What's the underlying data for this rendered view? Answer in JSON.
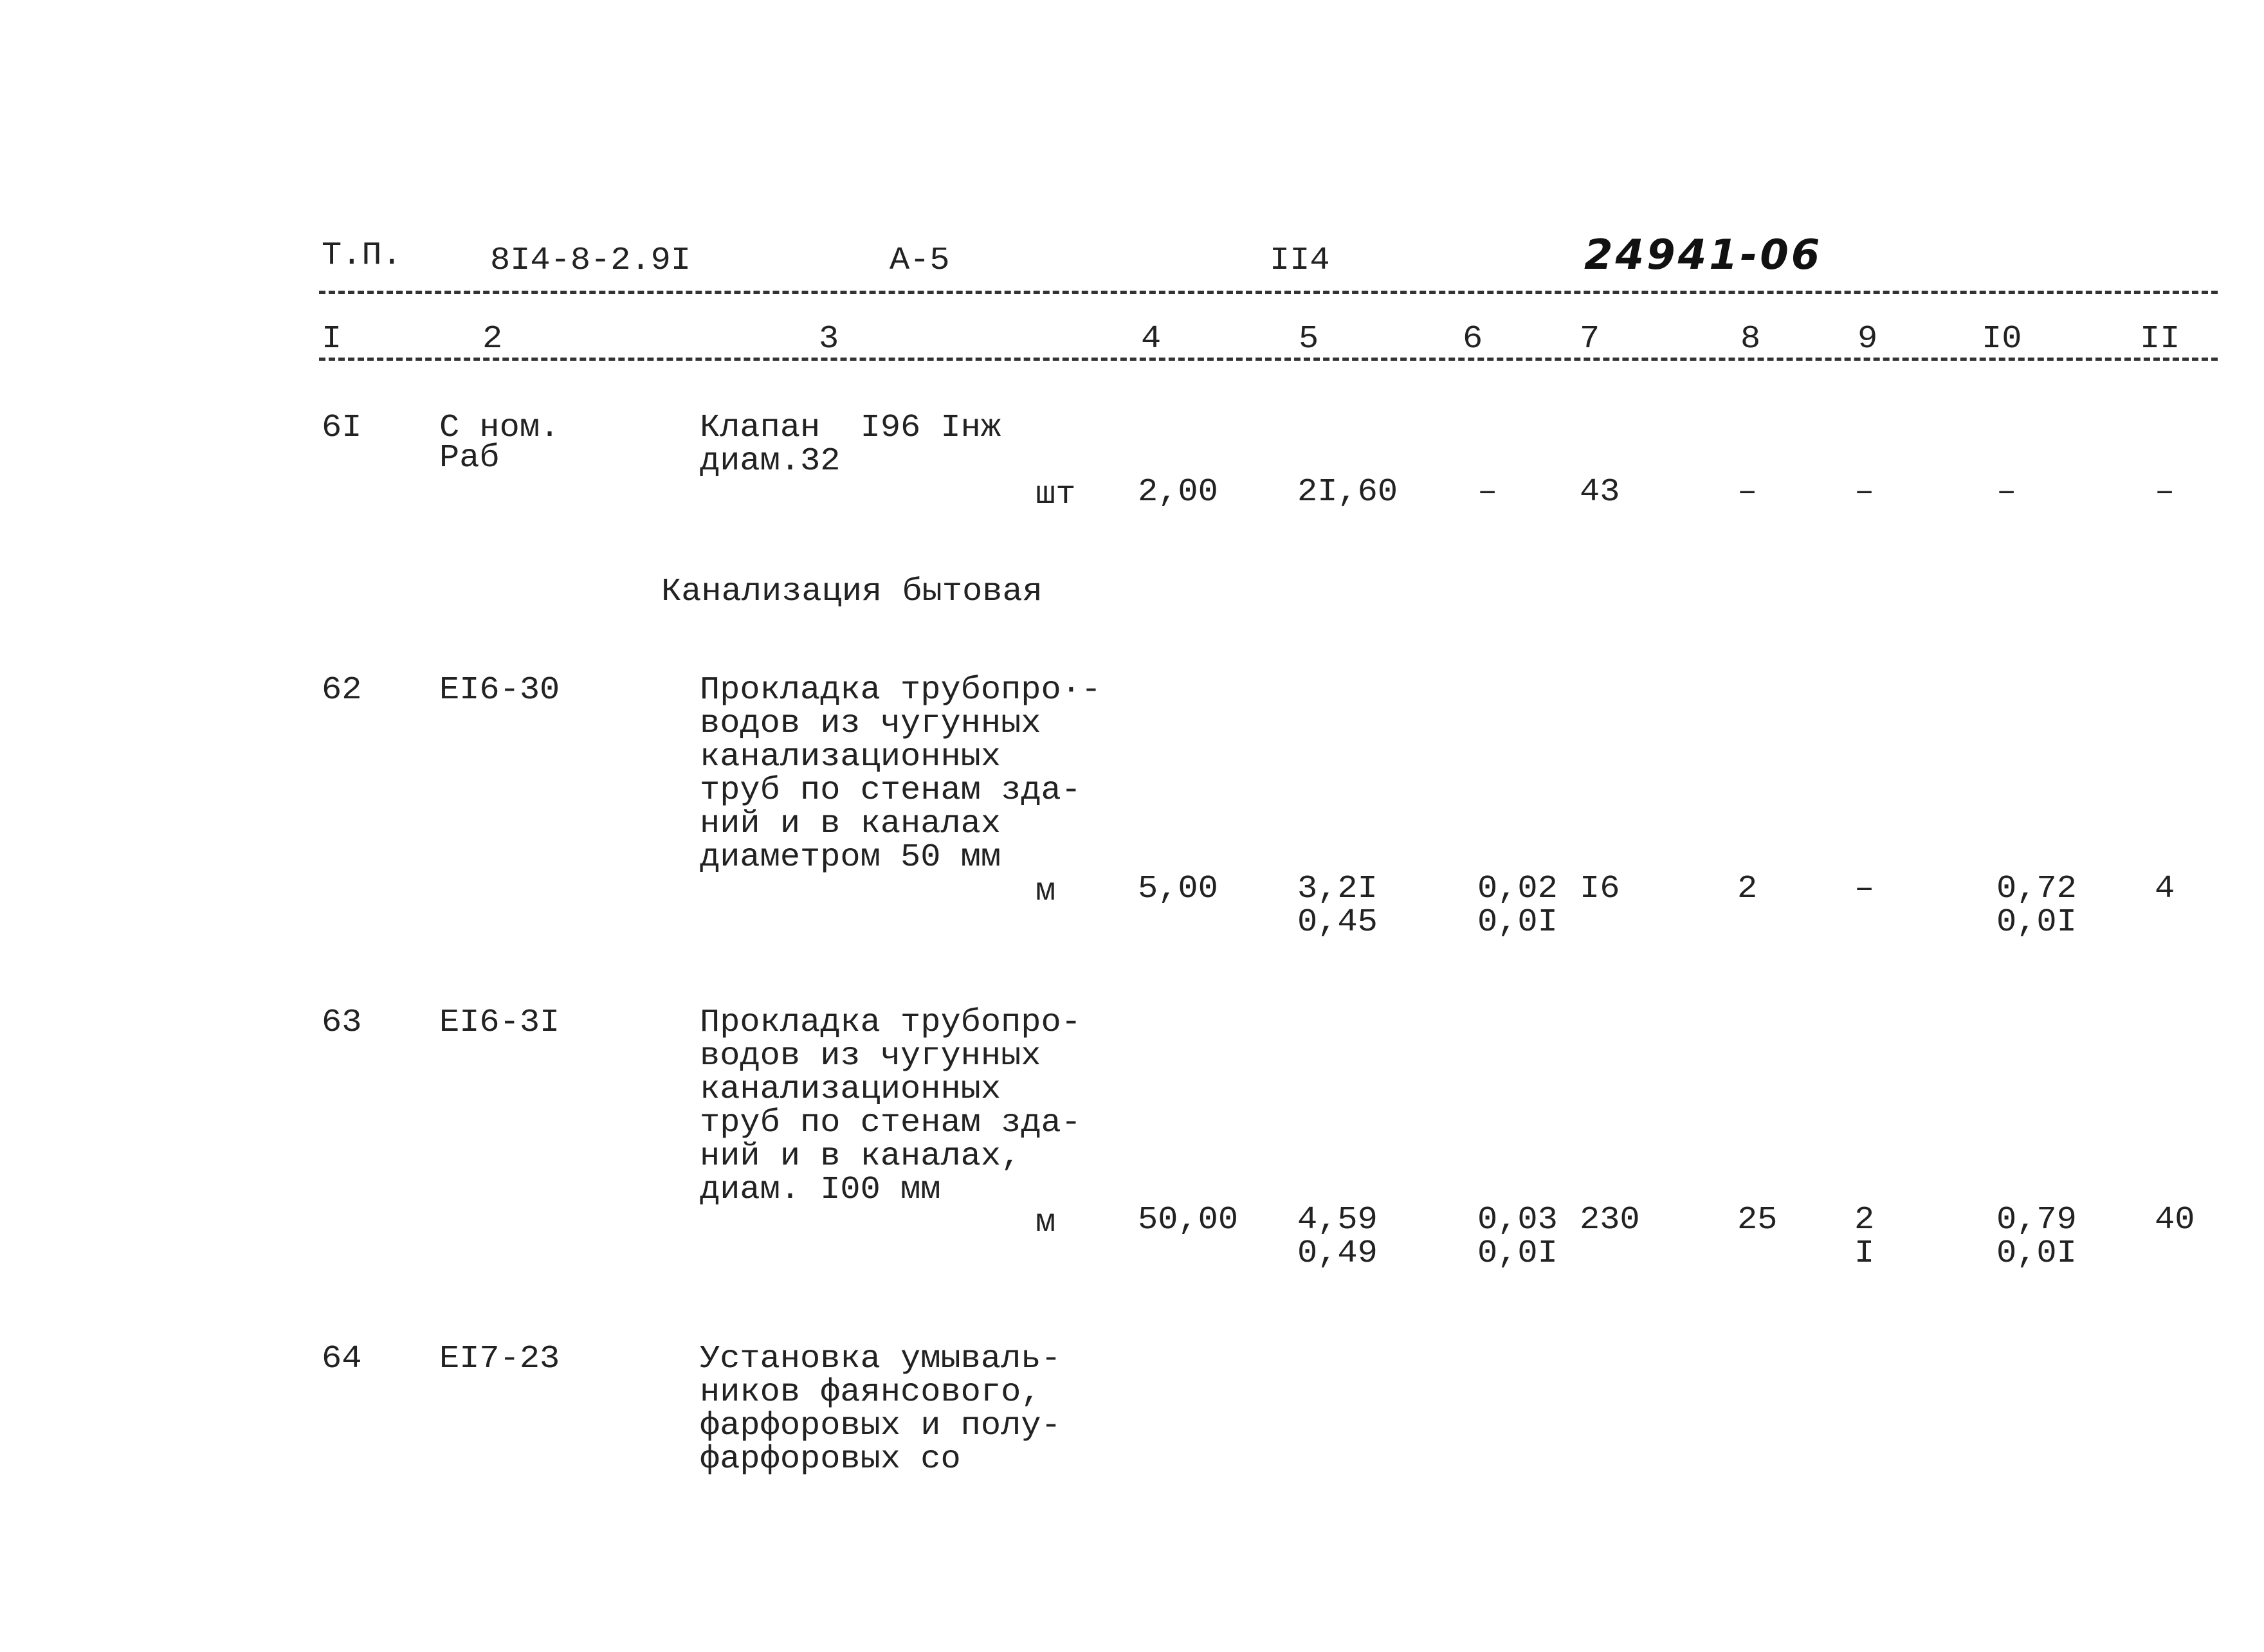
{
  "header": {
    "label": "Т.П.",
    "project_code": "8I4-8-2.9I",
    "album": "А-5",
    "page": "II4",
    "handwritten_number": "24941-06"
  },
  "column_numbers": [
    "I",
    "2",
    "3",
    "4",
    "5",
    "6",
    "7",
    "8",
    "9",
    "I0",
    "II"
  ],
  "rows": [
    {
      "num": "6I",
      "code": [
        "С ном.",
        "Раб"
      ],
      "description": [
        "Клапан  I96 Iнж",
        "диам.32"
      ],
      "unit": "шт",
      "values": [
        [
          "2,00"
        ],
        [
          "2I,60"
        ],
        [
          "–"
        ],
        [
          "43"
        ],
        [
          "–"
        ],
        [
          "–"
        ],
        [
          "–"
        ],
        [
          "–"
        ]
      ]
    },
    {
      "section": "Канализация бытовая"
    },
    {
      "num": "62",
      "code": [
        "EI6-30"
      ],
      "description": [
        "Прокладка трубопро·-",
        "водов из чугунных",
        "канализационных",
        "труб по стенам зда-",
        "ний и в каналах",
        "диаметром 50 мм"
      ],
      "unit": "м",
      "values": [
        [
          "5,00"
        ],
        [
          "3,2I",
          "0,45"
        ],
        [
          "0,02",
          "0,0I"
        ],
        [
          "I6"
        ],
        [
          "2"
        ],
        [
          "–"
        ],
        [
          "0,72",
          "0,0I"
        ],
        [
          "4"
        ]
      ]
    },
    {
      "num": "63",
      "code": [
        "EI6-3I"
      ],
      "description": [
        "Прокладка трубопро-",
        "водов из чугунных",
        "канализационных",
        "труб по стенам зда-",
        "ний и в каналах,",
        "диам. I00 мм"
      ],
      "unit": "м",
      "values": [
        [
          "50,00"
        ],
        [
          "4,59",
          "0,49"
        ],
        [
          "0,03",
          "0,0I"
        ],
        [
          "230"
        ],
        [
          "25"
        ],
        [
          "2",
          "I"
        ],
        [
          "0,79",
          "0,0I"
        ],
        [
          "40"
        ]
      ]
    },
    {
      "num": "64",
      "code": [
        "EI7-23"
      ],
      "description": [
        "Установка умываль-",
        "ников фаянсового,",
        "фарфоровых и полу-",
        "фарфоровых со"
      ]
    }
  ]
}
